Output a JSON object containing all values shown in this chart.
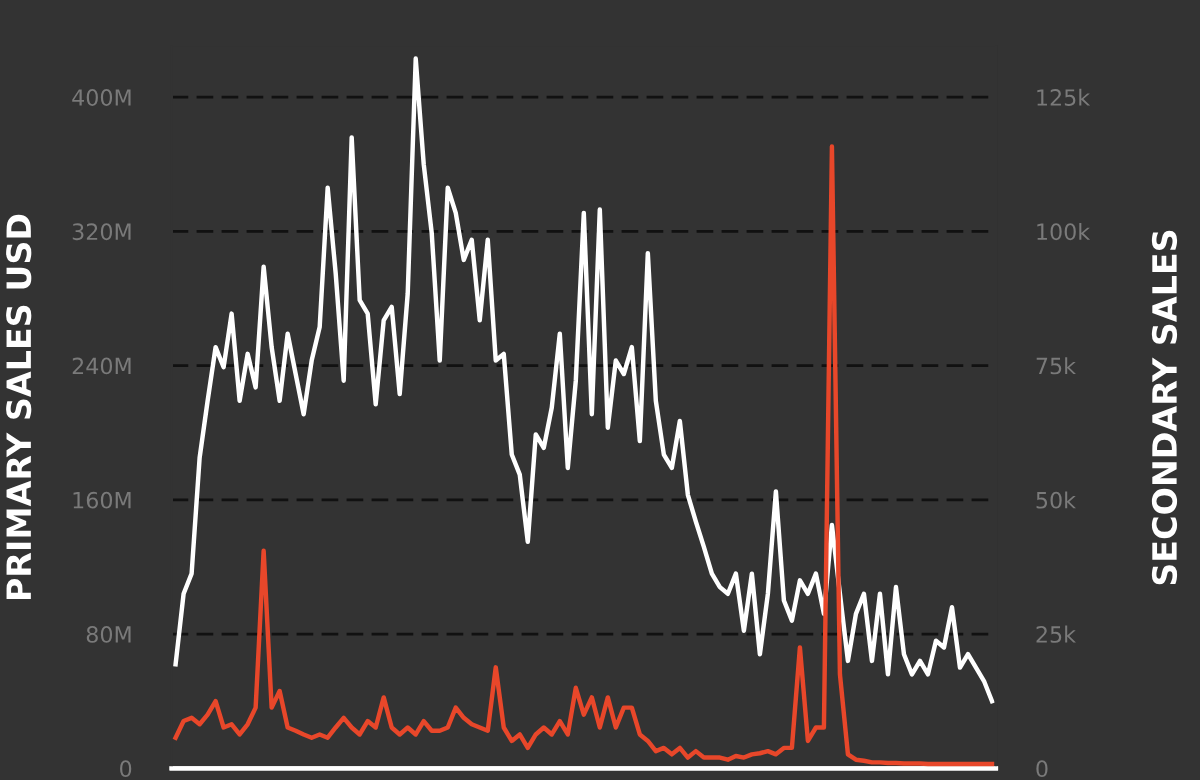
{
  "chart_data": {
    "type": "line",
    "ylabel": "PRIMARY SALES USD",
    "y2label": "SECONDARY SALES",
    "categories": [
      null,
      null,
      null,
      null,
      null,
      null,
      null,
      null,
      null,
      null,
      null,
      null,
      null,
      null,
      null,
      null,
      null,
      null,
      null,
      null,
      null,
      null,
      null,
      null,
      null,
      null,
      null,
      null,
      null,
      null,
      null,
      null,
      null,
      null,
      null,
      null,
      null,
      null,
      null,
      null,
      null,
      null,
      null,
      null,
      null,
      null,
      null,
      null,
      null,
      null,
      null,
      null,
      null,
      null,
      null,
      null,
      null,
      null,
      null,
      null,
      null,
      null,
      null,
      null,
      null,
      null,
      null,
      null,
      null,
      null,
      null,
      null,
      null,
      null,
      null,
      null,
      null,
      null,
      null,
      null,
      null,
      null,
      null,
      null,
      null,
      null,
      null,
      null,
      null,
      null,
      null,
      null,
      null,
      null,
      null,
      null,
      null,
      null,
      null,
      null,
      null,
      null,
      null
    ],
    "series": [
      {
        "color": "#ffffff",
        "values": [
          62,
          104,
          116,
          185,
          219,
          251,
          239,
          271,
          219,
          247,
          227,
          299,
          251,
          219,
          259,
          235,
          211,
          243,
          263,
          346,
          295,
          231,
          376,
          279,
          271,
          217,
          267,
          275,
          223,
          283,
          423,
          360,
          319,
          243,
          346,
          331,
          303,
          315,
          267,
          315,
          243,
          247,
          187,
          175,
          135,
          199,
          191,
          215,
          259,
          179,
          231,
          331,
          211,
          333,
          203,
          243,
          235,
          251,
          195,
          307,
          219,
          187,
          179,
          207,
          163,
          147,
          132,
          116,
          108,
          104,
          116,
          82,
          116,
          68,
          104,
          165,
          100,
          88,
          112,
          104,
          116,
          92,
          145,
          104,
          64,
          92,
          104,
          64,
          104,
          56,
          108,
          68,
          56,
          64,
          56,
          76,
          72,
          96,
          60,
          68,
          60,
          52,
          40
        ]
      },
      {
        "color": "#e8472a",
        "axis": "y2",
        "values": [
          5.7,
          8.8,
          9.4,
          8.2,
          10,
          12.5,
          7.6,
          8.2,
          6.3,
          8.2,
          11.3,
          40.5,
          11.3,
          14.4,
          7.6,
          7,
          6.3,
          5.7,
          6.3,
          5.7,
          7.6,
          9.4,
          7.6,
          6.3,
          8.8,
          7.6,
          13.2,
          7.6,
          6.3,
          7.6,
          6.3,
          8.8,
          7,
          7,
          7.6,
          11.3,
          9.4,
          8.2,
          7.6,
          7,
          18.8,
          7.6,
          5.1,
          6.3,
          3.8,
          6.3,
          7.6,
          6.3,
          8.8,
          6.3,
          15,
          10,
          13.2,
          7.6,
          13.2,
          7.6,
          11.3,
          11.3,
          6.3,
          5.1,
          3.2,
          3.8,
          2.6,
          3.8,
          2,
          3.2,
          2,
          2,
          2,
          1.6,
          2.3,
          2,
          2.6,
          2.8,
          3.2,
          2.6,
          3.8,
          3.8,
          22.5,
          5.1,
          7.6,
          7.6,
          115.8,
          17.5,
          2.6,
          1.6,
          1.4,
          1.1,
          1.1,
          1,
          1,
          0.9,
          0.9,
          0.9,
          0.8,
          0.8,
          0.8,
          0.8,
          0.8,
          0.8,
          0.8,
          0.8,
          0.8
        ]
      }
    ],
    "ylim": [
      0,
      430
    ],
    "yticks": [
      0,
      {
        "value": 80,
        "label": "80M"
      },
      {
        "value": 160,
        "label": "160M"
      },
      {
        "value": 240,
        "label": "240M"
      },
      {
        "value": 320,
        "label": "320M"
      },
      {
        "value": 400,
        "label": "400M"
      }
    ],
    "y2lim": [
      0,
      134.375
    ],
    "y2ticks": [
      0,
      {
        "value": 25,
        "label": "25k"
      },
      {
        "value": 50,
        "label": "50k"
      },
      {
        "value": 75,
        "label": "75k"
      },
      {
        "value": 100,
        "label": "100k"
      },
      {
        "value": 125,
        "label": "125k"
      }
    ],
    "grid": "y",
    "line_style": "solid",
    "tick_labels": "y"
  }
}
